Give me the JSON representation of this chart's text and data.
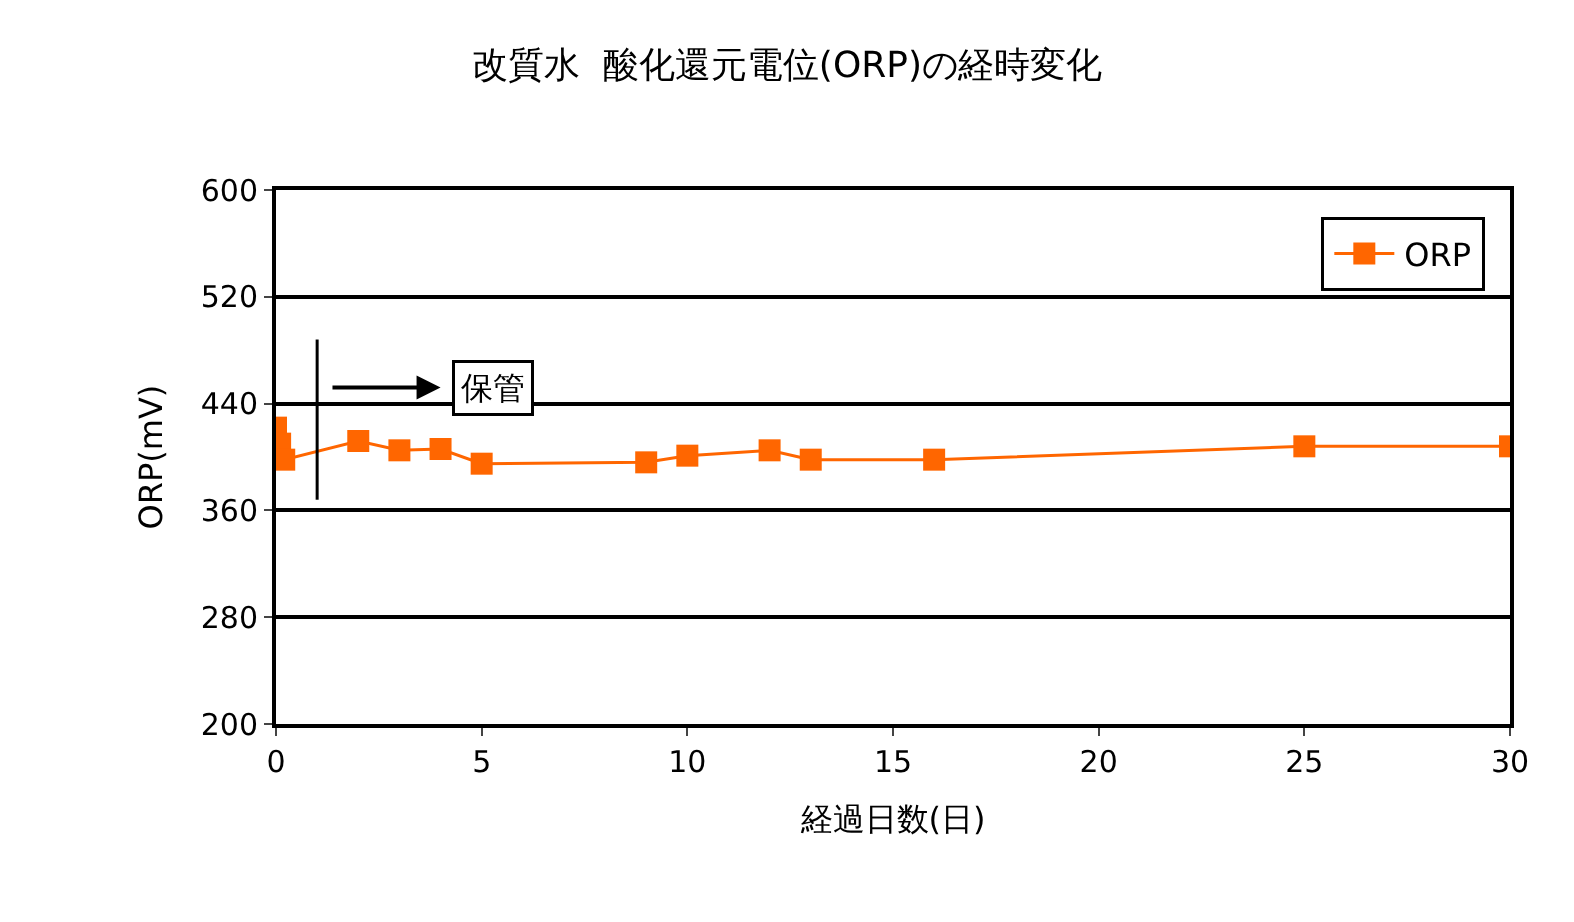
{
  "chart_data": {
    "type": "line",
    "title": "改質水  酸化還元電位(ORP)の経時変化",
    "xlabel": "経過日数(日)",
    "ylabel": "ORP(mV)",
    "series": [
      {
        "name": "ORP",
        "color": "#ff6600",
        "x": [
          0,
          0.1,
          0.2,
          2,
          3,
          4,
          5,
          9,
          10,
          12,
          13,
          16,
          25,
          30
        ],
        "values": [
          422,
          410,
          398,
          412,
          405,
          406,
          395,
          396,
          401,
          405,
          398,
          398,
          408,
          408
        ]
      }
    ],
    "xlim": [
      0,
      30
    ],
    "xticks": [
      0,
      5,
      10,
      15,
      20,
      25,
      30
    ],
    "ylim": [
      200,
      600
    ],
    "yticks": [
      200,
      280,
      360,
      440,
      520,
      600
    ],
    "ref_lines": [
      {
        "axis": "x",
        "value": 1,
        "label": "保管"
      }
    ],
    "grid": "y",
    "legend": "top right",
    "marker": "square",
    "line_style": "solid"
  }
}
